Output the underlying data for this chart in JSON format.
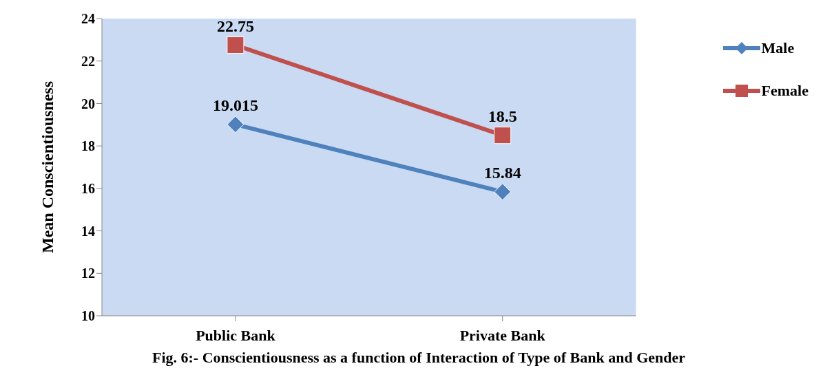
{
  "chart_data": {
    "type": "line",
    "title": "Fig. 6:- Conscientiousness as a function of Interaction of Type of Bank and Gender",
    "ylabel": "Mean Conscientiousness",
    "categories": [
      "Public Bank",
      "Private Bank"
    ],
    "series": [
      {
        "name": "Male",
        "color": "#4f81bd",
        "values": [
          19.015,
          15.84
        ],
        "marker": "diamond"
      },
      {
        "name": "Female",
        "color": "#c0504d",
        "values": [
          22.75,
          18.5
        ],
        "marker": "square"
      }
    ],
    "ylim": [
      10,
      24
    ],
    "yticks": [
      10,
      12,
      14,
      16,
      18,
      20,
      22,
      24
    ],
    "data_labels": true,
    "legend": "right",
    "line_style": "solid"
  }
}
